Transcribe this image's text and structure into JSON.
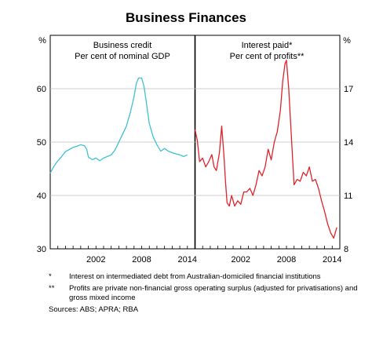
{
  "chart_data": {
    "type": "line",
    "title": "Business Finances",
    "x_ticks": [
      2002,
      2008,
      2014
    ],
    "panels": [
      {
        "title": "Business credit",
        "subtitle": "Per cent of nominal GDP",
        "axis_unit": "%",
        "axis_side": "left",
        "ylim": [
          30,
          70
        ],
        "y_ticks": [
          30,
          40,
          50,
          60
        ],
        "line_color": "#3fc2d0",
        "series": [
          {
            "x": [
              1996.0,
              1996.5,
              1997.0,
              1997.5,
              1998.0,
              1998.5,
              1999.0,
              1999.5,
              2000.0,
              2000.5,
              2000.8,
              2001.0,
              2001.5,
              2002.0,
              2002.5,
              2003.0,
              2003.5,
              2004.0,
              2004.5,
              2005.0,
              2005.5,
              2006.0,
              2006.5,
              2007.0,
              2007.3,
              2007.6,
              2008.0,
              2008.3,
              2008.6,
              2009.0,
              2009.5,
              2010.0,
              2010.5,
              2011.0,
              2011.5,
              2012.0,
              2012.5,
              2013.0,
              2013.5,
              2014.0
            ],
            "y": [
              44.2,
              45.5,
              46.5,
              47.3,
              48.2,
              48.6,
              49.0,
              49.2,
              49.5,
              49.3,
              48.6,
              47.2,
              46.7,
              47.0,
              46.5,
              47.0,
              47.3,
              47.6,
              48.5,
              50.0,
              51.5,
              53.0,
              55.5,
              58.5,
              61.0,
              62.0,
              62.0,
              60.5,
              57.5,
              53.5,
              51.0,
              49.5,
              48.3,
              48.8,
              48.3,
              48.0,
              47.8,
              47.6,
              47.3,
              47.6
            ]
          }
        ]
      },
      {
        "title": "Interest paid*",
        "subtitle": "Per cent of profits**",
        "axis_unit": "%",
        "axis_side": "right",
        "ylim": [
          8,
          20
        ],
        "y_ticks": [
          8,
          11,
          14,
          17
        ],
        "line_color": "#e0222b",
        "series": [
          {
            "x": [
              1996.0,
              1996.3,
              1996.6,
              1997.0,
              1997.4,
              1997.8,
              1998.2,
              1998.5,
              1998.8,
              1999.2,
              1999.5,
              1999.8,
              2000.0,
              2000.2,
              2000.5,
              2000.8,
              2001.2,
              2001.6,
              2002.0,
              2002.4,
              2002.8,
              2003.2,
              2003.6,
              2004.0,
              2004.4,
              2004.8,
              2005.2,
              2005.6,
              2006.0,
              2006.4,
              2006.8,
              2007.2,
              2007.5,
              2007.8,
              2008.0,
              2008.3,
              2008.6,
              2009.0,
              2009.4,
              2009.8,
              2010.2,
              2010.6,
              2011.0,
              2011.4,
              2011.8,
              2012.2,
              2012.6,
              2013.0,
              2013.4,
              2013.8,
              2014.2,
              2014.6
            ],
            "y": [
              14.7,
              14.1,
              12.9,
              13.1,
              12.6,
              12.9,
              13.3,
              12.6,
              12.4,
              13.4,
              14.9,
              13.2,
              11.8,
              10.6,
              10.4,
              11.0,
              10.4,
              10.7,
              10.5,
              11.2,
              11.2,
              11.4,
              11.0,
              11.6,
              12.4,
              12.1,
              12.6,
              13.6,
              13.0,
              14.0,
              14.6,
              15.8,
              17.4,
              18.4,
              18.6,
              17.0,
              14.6,
              11.6,
              11.9,
              11.8,
              12.3,
              12.1,
              12.6,
              11.8,
              11.9,
              11.4,
              10.7,
              10.1,
              9.4,
              8.9,
              8.6,
              9.2
            ]
          }
        ]
      }
    ]
  },
  "notes": [
    {
      "mark": "*",
      "text": "Interest on intermediated debt from Australian-domiciled financial institutions"
    },
    {
      "mark": "**",
      "text": "Profits are private non-financial gross operating surplus (adjusted for privatisations) and gross mixed income"
    }
  ],
  "sources": "Sources:   ABS; APRA; RBA"
}
